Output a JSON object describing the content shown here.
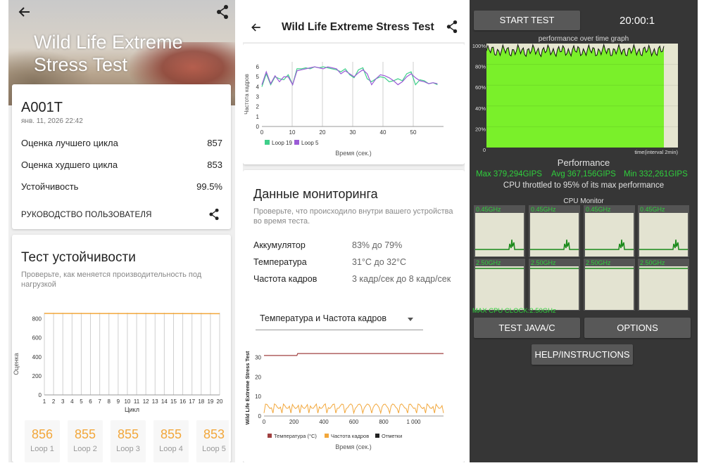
{
  "panel1": {
    "title": "Wild Life Extreme Stress Test",
    "device": "A001T",
    "date": "янв. 11, 2026 22:42",
    "rows": [
      {
        "label": "Оценка лучшего цикла",
        "value": "857"
      },
      {
        "label": "Оценка худшего цикла",
        "value": "853"
      },
      {
        "label": "Устойчивость",
        "value": "99.5%"
      }
    ],
    "guide_label": "РУКОВОДСТВО ПОЛЬЗОВАТЕЛЯ",
    "stability_title": "Тест устойчивости",
    "stability_sub": "Проверьте, как меняется производительность под нагрузкой",
    "stability_chart": {
      "ylabel": "Оценка",
      "xlabel": "Цикл",
      "yticks": [
        "0",
        "200",
        "400",
        "600",
        "800"
      ],
      "xticks": [
        "1",
        "2",
        "3",
        "4",
        "5",
        "6",
        "7",
        "8",
        "9",
        "10",
        "11",
        "12",
        "13",
        "14",
        "15",
        "16",
        "17",
        "18",
        "19",
        "20"
      ]
    },
    "loops": [
      {
        "score": "856",
        "label": "Loop 1"
      },
      {
        "score": "855",
        "label": "Loop 2"
      },
      {
        "score": "855",
        "label": "Loop 3"
      },
      {
        "score": "855",
        "label": "Loop 4"
      },
      {
        "score": "853",
        "label": "Loop 5"
      }
    ]
  },
  "panel2": {
    "title": "Wild Life Extreme Stress Test",
    "fps_chart": {
      "ylabel": "Частота кадров",
      "xlabel": "Время (сек.)",
      "yticks": [
        "0",
        "1",
        "2",
        "3",
        "4",
        "5",
        "6"
      ],
      "xticks": [
        "0",
        "10",
        "20",
        "30",
        "40",
        "50"
      ],
      "legend": [
        "Loop 19",
        "Loop 5"
      ]
    },
    "monitor_title": "Данные мониторинга",
    "monitor_sub": "Проверьте, что происходило внутри вашего устройства во время теста.",
    "monitor_rows": [
      {
        "label": "Аккумулятор",
        "value": "83% до 79%"
      },
      {
        "label": "Температура",
        "value": "31°C до 32°C"
      },
      {
        "label": "Частота кадров",
        "value": "3 кадр/сек до 8 кадр/сек"
      }
    ],
    "select_value": "Температура и Частота кадров",
    "temp_chart": {
      "vlabel": "Wild Life Extreme Stress Test",
      "xlabel": "Время (сек.)",
      "yticks": [
        "0",
        "10",
        "20",
        "30"
      ],
      "xticks": [
        "0",
        "200",
        "400",
        "600",
        "800",
        "1 000"
      ],
      "legend": [
        "Температура (°C)",
        "Частота кадров",
        "Отметки"
      ]
    }
  },
  "panel3": {
    "start_label": "START TEST",
    "timer": "20:00:1",
    "graph_title": "performance over time graph",
    "graph_yticks": [
      "100%",
      "80%",
      "60%",
      "40%",
      "20%",
      "0"
    ],
    "graph_xlabel": "time(interval 2min)",
    "perf_label": "Performance",
    "max": "Max 379,294GIPS",
    "avg": "Avg 367,156GIPS",
    "min": "Min 332,261GIPS",
    "throttle": "CPU throttled to 95% of its max performance",
    "cpu_title": "CPU Monitor",
    "cores": [
      "0.45GHz",
      "0.45GHz",
      "0.45GHz",
      "0.45GHz",
      "2.50GHz",
      "2.50GHz",
      "2.50GHz",
      "2.50GHz"
    ],
    "max_clock": "MAX CPU CLOCK:2.50GHz",
    "test_label": "TEST JAVA/C",
    "options_label": "OPTIONS",
    "help_label": "HELP/INSTRUCTIONS"
  },
  "colors": {
    "accent_orange": "#f2a73b",
    "loop19_green": "#3fcf8a",
    "loop5_purple": "#9b5bd6",
    "temp_red": "#a04040",
    "cpu_green": "#2fce3c",
    "perf_fill": "#7af02a"
  }
}
